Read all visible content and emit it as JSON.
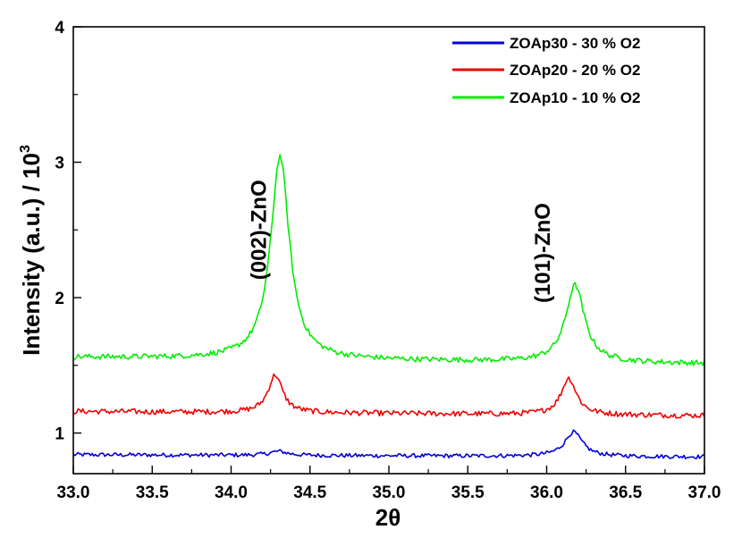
{
  "chart_data": {
    "type": "line",
    "xlabel": "2θ",
    "ylabel": "Intensity (a.u.) / 10",
    "ylabel_sup": "3",
    "xlim": [
      33.0,
      37.0
    ],
    "ylim": [
      0.7,
      4.0
    ],
    "xticks": [
      "33.0",
      "33.5",
      "34.0",
      "34.5",
      "35.0",
      "35.5",
      "36.0",
      "36.5",
      "37.0"
    ],
    "yticks": [
      "1",
      "2",
      "3",
      "4"
    ],
    "legend_position": "top-right",
    "series": [
      {
        "name": "ZOAp30 - 30 % O2",
        "color": "#0000dd",
        "baseline": 0.84,
        "peaks": [
          {
            "center": 34.3,
            "height": 0.03,
            "width": 0.08
          },
          {
            "center": 36.17,
            "height": 0.18,
            "width": 0.08
          }
        ],
        "noise": 0.015,
        "end": 0.82
      },
      {
        "name": "ZOAp20 - 20 % O2",
        "color": "#ee0000",
        "baseline": 1.16,
        "peaks": [
          {
            "center": 34.28,
            "height": 0.28,
            "width": 0.065
          },
          {
            "center": 36.14,
            "height": 0.27,
            "width": 0.07
          }
        ],
        "noise": 0.02,
        "end": 1.12
      },
      {
        "name": "ZOAp10 - 10 % O2",
        "color": "#00ee00",
        "baseline": 1.56,
        "peaks": [
          {
            "center": 34.31,
            "height": 1.5,
            "width": 0.085
          },
          {
            "center": 36.18,
            "height": 0.57,
            "width": 0.085
          }
        ],
        "noise": 0.02,
        "end": 1.5
      }
    ],
    "annotations": [
      {
        "text": "(002)-ZnO",
        "x": 34.22,
        "y": 2.5
      },
      {
        "text": "(101)-ZnO",
        "x": 36.02,
        "y": 2.33
      }
    ]
  }
}
